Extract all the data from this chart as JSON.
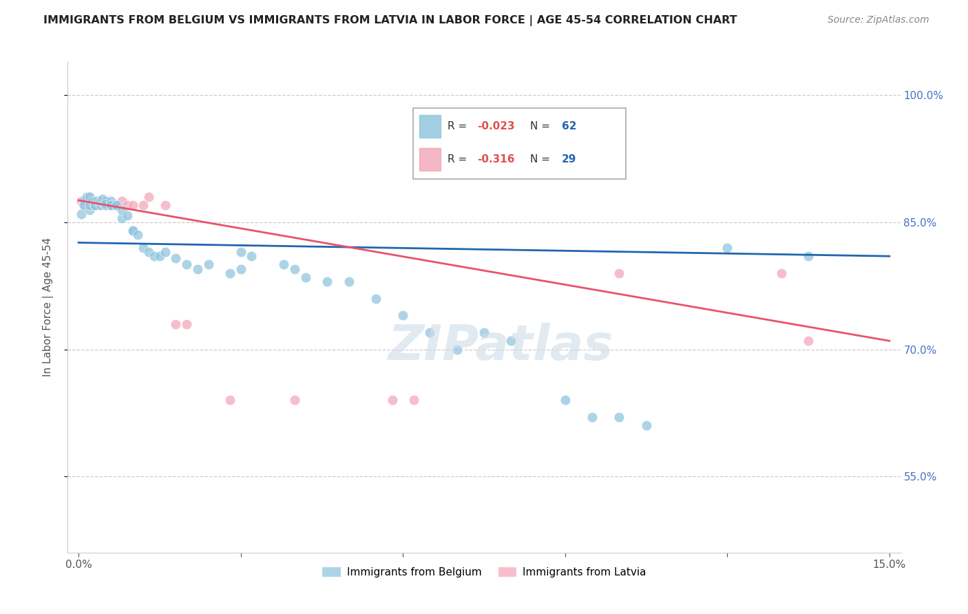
{
  "title": "IMMIGRANTS FROM BELGIUM VS IMMIGRANTS FROM LATVIA IN LABOR FORCE | AGE 45-54 CORRELATION CHART",
  "source": "Source: ZipAtlas.com",
  "ylabel": "In Labor Force | Age 45-54",
  "xlim": [
    -0.002,
    0.152
  ],
  "ylim": [
    0.46,
    1.04
  ],
  "xticks": [
    0.0,
    0.03,
    0.06,
    0.09,
    0.12,
    0.15
  ],
  "xticklabels": [
    "0.0%",
    "",
    "",
    "",
    "",
    "15.0%"
  ],
  "ytick_positions": [
    0.55,
    0.7,
    0.85,
    1.0
  ],
  "ytick_labels": [
    "55.0%",
    "70.0%",
    "85.0%",
    "100.0%"
  ],
  "legend_belgium_r": "-0.023",
  "legend_belgium_n": "62",
  "legend_latvia_r": "-0.316",
  "legend_latvia_n": "29",
  "belgium_color": "#92c5de",
  "latvia_color": "#f4a9bb",
  "belgium_line_color": "#2166ac",
  "latvia_line_color": "#e8526a",
  "bel_x": [
    0.0005,
    0.001,
    0.001,
    0.0015,
    0.002,
    0.002,
    0.002,
    0.002,
    0.0025,
    0.003,
    0.003,
    0.003,
    0.003,
    0.0035,
    0.004,
    0.004,
    0.004,
    0.0045,
    0.005,
    0.005,
    0.005,
    0.006,
    0.006,
    0.006,
    0.007,
    0.007,
    0.008,
    0.008,
    0.009,
    0.01,
    0.01,
    0.011,
    0.012,
    0.013,
    0.014,
    0.015,
    0.016,
    0.018,
    0.02,
    0.022,
    0.024,
    0.028,
    0.03,
    0.03,
    0.032,
    0.038,
    0.04,
    0.042,
    0.046,
    0.05,
    0.055,
    0.06,
    0.065,
    0.07,
    0.075,
    0.08,
    0.09,
    0.095,
    0.1,
    0.105,
    0.12,
    0.135
  ],
  "bel_y": [
    0.86,
    0.875,
    0.87,
    0.88,
    0.865,
    0.875,
    0.87,
    0.88,
    0.875,
    0.87,
    0.87,
    0.875,
    0.87,
    0.875,
    0.87,
    0.875,
    0.875,
    0.878,
    0.87,
    0.875,
    0.872,
    0.87,
    0.875,
    0.87,
    0.87,
    0.87,
    0.855,
    0.865,
    0.858,
    0.84,
    0.84,
    0.835,
    0.82,
    0.815,
    0.81,
    0.81,
    0.815,
    0.808,
    0.8,
    0.795,
    0.8,
    0.79,
    0.795,
    0.815,
    0.81,
    0.8,
    0.795,
    0.785,
    0.78,
    0.78,
    0.76,
    0.74,
    0.72,
    0.7,
    0.72,
    0.71,
    0.64,
    0.62,
    0.62,
    0.61,
    0.82,
    0.81
  ],
  "lat_x": [
    0.0005,
    0.001,
    0.001,
    0.002,
    0.002,
    0.002,
    0.003,
    0.003,
    0.004,
    0.004,
    0.005,
    0.005,
    0.006,
    0.007,
    0.008,
    0.009,
    0.01,
    0.012,
    0.013,
    0.016,
    0.018,
    0.02,
    0.028,
    0.04,
    0.058,
    0.062,
    0.1,
    0.13,
    0.135
  ],
  "lat_y": [
    0.875,
    0.875,
    0.87,
    0.87,
    0.875,
    0.88,
    0.87,
    0.875,
    0.87,
    0.875,
    0.87,
    0.875,
    0.87,
    0.87,
    0.875,
    0.87,
    0.87,
    0.87,
    0.88,
    0.87,
    0.73,
    0.73,
    0.64,
    0.64,
    0.64,
    0.64,
    0.79,
    0.79,
    0.71
  ]
}
